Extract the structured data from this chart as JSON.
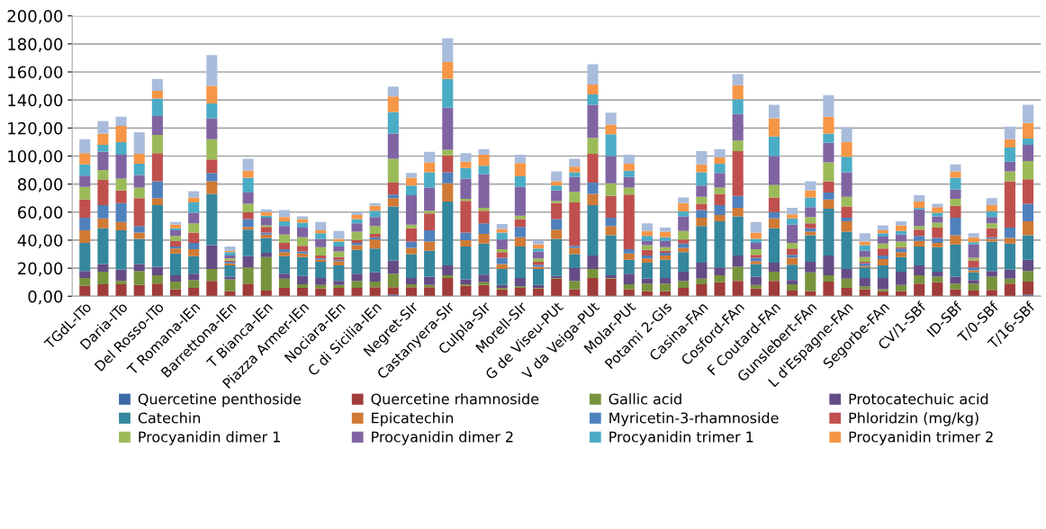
{
  "chart_data": {
    "type": "bar",
    "stacked": true,
    "categories": [
      "TGdL-ITo",
      null,
      "Daria-ITo",
      null,
      "Del Rosso-ITo",
      null,
      "T Romana-IEn",
      null,
      "Barrettona-IEn",
      null,
      "T Bianca-IEn",
      null,
      "Piazza Armer-IEn",
      null,
      "Nociara-IEn",
      null,
      "C di Sicilia-IEn",
      null,
      "Negret-SIr",
      null,
      "Castanyera-SIr",
      null,
      "Culpla-SIr",
      null,
      "Morell-SIr",
      null,
      "G de Viseu-PUt",
      null,
      "V da Veiga-PUt",
      null,
      "Molar-PUt",
      null,
      "Potami 2-GIs",
      null,
      "Casina-FAn",
      null,
      "Cosford-FAn",
      null,
      "F Coutard-FAn",
      null,
      "Gunslebert-FAn",
      null,
      "L d'Espagne-FAn",
      null,
      "Segorbe-FAn",
      null,
      "CV/1-SBf",
      null,
      "ID-SBf",
      null,
      "T/0-SBf",
      null,
      "T/16-SBf"
    ],
    "series": [
      {
        "name": "Quercetine penthoside",
        "color": "#3d6aa5",
        "values": [
          0,
          0,
          0,
          0,
          0,
          0,
          0,
          0,
          0,
          0,
          0,
          0,
          0,
          0,
          0,
          0,
          0,
          1,
          0,
          0,
          0,
          0,
          0,
          0,
          0,
          0,
          0,
          0,
          0,
          0,
          0,
          0,
          0,
          0,
          0,
          0,
          0,
          0,
          0,
          0,
          0,
          0,
          0,
          0,
          0,
          0,
          0,
          0,
          0,
          0,
          0,
          0,
          1
        ]
      },
      {
        "name": "Quercetine rhamnoside",
        "color": "#a03c3a",
        "values": [
          7.5,
          8.5,
          8.5,
          8,
          9,
          5,
          6,
          11,
          3.5,
          9,
          4,
          6,
          6,
          5.5,
          6,
          6,
          6.5,
          5.5,
          6.5,
          6.5,
          13,
          7.5,
          8,
          5,
          6,
          5.5,
          12.5,
          5,
          13,
          12.5,
          5,
          3.5,
          3.5,
          6,
          8.5,
          10,
          11,
          5.5,
          11,
          4,
          3.5,
          10.5,
          6,
          5,
          3.5,
          3.5,
          9,
          10,
          5,
          4,
          4.5,
          9,
          9.5
        ]
      },
      {
        "name": "Gallic acid",
        "color": "#77933c",
        "values": [
          5.5,
          9,
          2.5,
          10,
          6,
          5.5,
          5.5,
          8.5,
          8.5,
          11.5,
          24,
          6.5,
          2.5,
          2.5,
          2,
          5,
          4,
          9.5,
          2,
          1.5,
          2,
          1,
          2,
          1,
          1,
          0.5,
          0.5,
          6,
          6.5,
          0.5,
          3.5,
          5.5,
          5.5,
          5,
          4,
          5,
          10,
          2.5,
          6.5,
          4.5,
          13.5,
          4.5,
          6.5,
          2,
          1.5,
          4.5,
          6,
          4,
          4,
          5,
          9.5,
          3.5,
          7.5
        ]
      },
      {
        "name": "Protocatechuic acid",
        "color": "#654c86",
        "values": [
          5,
          5.5,
          8,
          5,
          6,
          4.5,
          4.5,
          17,
          2,
          8,
          3,
          3.5,
          6,
          5,
          3,
          5,
          6.5,
          9.5,
          4.5,
          6,
          7,
          3.5,
          5.5,
          2,
          6,
          2,
          1.5,
          9,
          9.5,
          2,
          7.5,
          3.5,
          4,
          6.5,
          11.5,
          5.5,
          8,
          6,
          6.5,
          3,
          7.5,
          14,
          7,
          6,
          8,
          9.5,
          7,
          3.5,
          5,
          2.5,
          4,
          6.5,
          8
        ]
      },
      {
        "name": "Catechin",
        "color": "#34879e",
        "values": [
          20,
          25.5,
          28,
          18,
          44,
          15.5,
          12.5,
          36.5,
          8,
          19,
          10.5,
          12.5,
          13.5,
          11.5,
          11,
          17,
          17,
          38.5,
          17,
          18.5,
          45.5,
          23.5,
          22,
          11.5,
          22.5,
          11.5,
          26.5,
          10,
          36,
          28.5,
          10,
          11.5,
          13,
          14,
          26,
          33,
          28,
          9,
          24.5,
          11,
          19,
          33.5,
          26.5,
          7.5,
          9,
          10.5,
          13.5,
          17.5,
          23,
          5.5,
          21,
          18.5,
          17.5
        ]
      },
      {
        "name": "Epicatechin",
        "color": "#d07a35",
        "values": [
          9,
          7,
          6,
          4.5,
          5,
          3.5,
          5,
          9,
          1.5,
          2,
          2.5,
          3,
          2.5,
          1.5,
          3,
          3.5,
          6.5,
          6,
          4.5,
          6.5,
          13,
          4.5,
          7,
          3.5,
          6.5,
          1.5,
          6.5,
          4.5,
          8,
          6.5,
          4.5,
          3,
          3,
          3,
          6,
          4.5,
          6,
          2,
          7,
          5,
          2.5,
          6.5,
          7.5,
          1,
          4.5,
          3.5,
          4,
          3,
          6.5,
          1.5,
          2,
          4,
          10
        ]
      },
      {
        "name": "Myricetin-3-rhamnoside",
        "color": "#4f81bd",
        "values": [
          9,
          9.5,
          13.5,
          4.5,
          12,
          1.5,
          4.5,
          6,
          1,
          5.5,
          1.5,
          2,
          1.5,
          1,
          1,
          1.5,
          1.5,
          2.5,
          4.5,
          8,
          8,
          5.5,
          7.5,
          4.5,
          7.5,
          1.5,
          7.5,
          1.5,
          8,
          6,
          3,
          2,
          2,
          3,
          5.5,
          7,
          8.5,
          2.5,
          4.5,
          2,
          2.5,
          5,
          2.5,
          2,
          2.5,
          2.5,
          3.5,
          3.5,
          12.5,
          2,
          1,
          7.5,
          12.5
        ]
      },
      {
        "name": "Phloridzin (mg/kg)",
        "color": "#c0504d",
        "values": [
          13,
          18,
          9,
          20,
          20,
          4,
          7.5,
          9.5,
          1,
          5,
          4,
          4.5,
          4,
          2,
          2,
          2,
          2.5,
          8.5,
          9.5,
          12,
          12,
          22.5,
          9,
          4,
          5.5,
          2,
          11.5,
          31,
          20.5,
          15.5,
          39,
          4,
          1.5,
          3,
          4.5,
          8,
          32,
          2,
          10.5,
          4.5,
          3.5,
          8,
          8,
          1,
          5,
          1,
          4.5,
          7.5,
          8.5,
          5,
          6.5,
          33,
          17.5
        ]
      },
      {
        "name": "Procyanidin dimer 1",
        "color": "#9bbb59",
        "values": [
          9,
          7,
          8.5,
          7.5,
          13,
          3.5,
          6.5,
          14.5,
          1.5,
          6,
          1,
          6,
          6,
          6,
          4,
          6,
          5.5,
          17,
          2.5,
          2,
          4,
          1.5,
          2,
          2,
          2.5,
          2.5,
          1.5,
          7.5,
          11.5,
          9,
          5,
          3.5,
          2.5,
          6,
          5,
          4.5,
          7.5,
          4,
          9,
          4,
          4.5,
          13.5,
          7,
          3.5,
          3.5,
          4,
          2.5,
          3.5,
          5,
          2,
          3.5,
          7,
          13
        ]
      },
      {
        "name": "Procyanidin dimer 2",
        "color": "#8064a2",
        "values": [
          8,
          13,
          17,
          9,
          13.5,
          4,
          7.5,
          15,
          2,
          8,
          5.5,
          6,
          7,
          6,
          3.5,
          6,
          6.5,
          18,
          21,
          16.5,
          30,
          14.5,
          24,
          7,
          20.5,
          5,
          7.5,
          10.5,
          23.5,
          19.5,
          7.5,
          3,
          4.5,
          10.5,
          8,
          10.5,
          19,
          4.5,
          20.5,
          13,
          7,
          14,
          17.5,
          4.5,
          5,
          5,
          12,
          4.5,
          6.5,
          9.5,
          4.5,
          7,
          11.5
        ]
      },
      {
        "name": "Procyanidin trimer 1",
        "color": "#4bacc6",
        "values": [
          8,
          5,
          9,
          8,
          12.5,
          1.5,
          7.5,
          10.5,
          2.5,
          10.5,
          1.5,
          3.5,
          3.5,
          4,
          3.5,
          3,
          4.5,
          15.5,
          7,
          11,
          20.5,
          7.5,
          6,
          5,
          7.5,
          2,
          3.5,
          3.5,
          7.5,
          15.5,
          4.5,
          3.5,
          2.5,
          3.5,
          9.5,
          6.5,
          10.5,
          3,
          14,
          4.5,
          7,
          6.5,
          11,
          4,
          2.5,
          2.5,
          1,
          2.5,
          8.5,
          1.5,
          4,
          10,
          4.5
        ]
      },
      {
        "name": "Procyanidin trimer 2",
        "color": "#f79646",
        "values": [
          8,
          8,
          11.5,
          7,
          5.5,
          2.5,
          3.5,
          12.5,
          1,
          5,
          2.5,
          3,
          2.5,
          2,
          2,
          3,
          3.5,
          11,
          5.5,
          7,
          12,
          4.5,
          8,
          2.5,
          9.5,
          3,
          3,
          4,
          7,
          7,
          5,
          3.5,
          4,
          6,
          5.5,
          4.5,
          10,
          4.5,
          13,
          3,
          5,
          12,
          10.5,
          2.5,
          2,
          4,
          4.5,
          4,
          4.5,
          3.5,
          4.5,
          6,
          11
        ]
      },
      {
        "color": "#a9bcdc",
        "values": [
          10,
          9,
          6.5,
          15.5,
          8.5,
          2,
          4.5,
          22,
          3,
          8.5,
          2,
          5,
          2,
          6,
          5.5,
          2,
          2,
          7,
          3.5,
          7.5,
          17,
          6,
          4,
          3.5,
          6,
          3,
          7,
          5.5,
          14.5,
          8.5,
          6.5,
          5.5,
          3,
          4,
          9.5,
          6,
          8,
          7.5,
          9.5,
          4.5,
          6.5,
          15.5,
          10.5,
          6,
          3.5,
          3,
          4.5,
          2.5,
          5,
          3,
          5,
          9,
          13
        ]
      }
    ],
    "ylim": [
      0,
      200
    ],
    "yticks": [
      {
        "value": 0,
        "label": "0,00"
      },
      {
        "value": 20,
        "label": "20,00"
      },
      {
        "value": 40,
        "label": "40,00"
      },
      {
        "value": 60,
        "label": "60,00"
      },
      {
        "value": 80,
        "label": "80,00"
      },
      {
        "value": 100,
        "label": "100,00"
      },
      {
        "value": 120,
        "label": "120,00"
      },
      {
        "value": 140,
        "label": "140,00"
      },
      {
        "value": 160,
        "label": "160,00"
      },
      {
        "value": 180,
        "label": "180,00"
      },
      {
        "value": 200,
        "label": "200,00"
      }
    ],
    "grid": "y",
    "legend": "bottom"
  }
}
